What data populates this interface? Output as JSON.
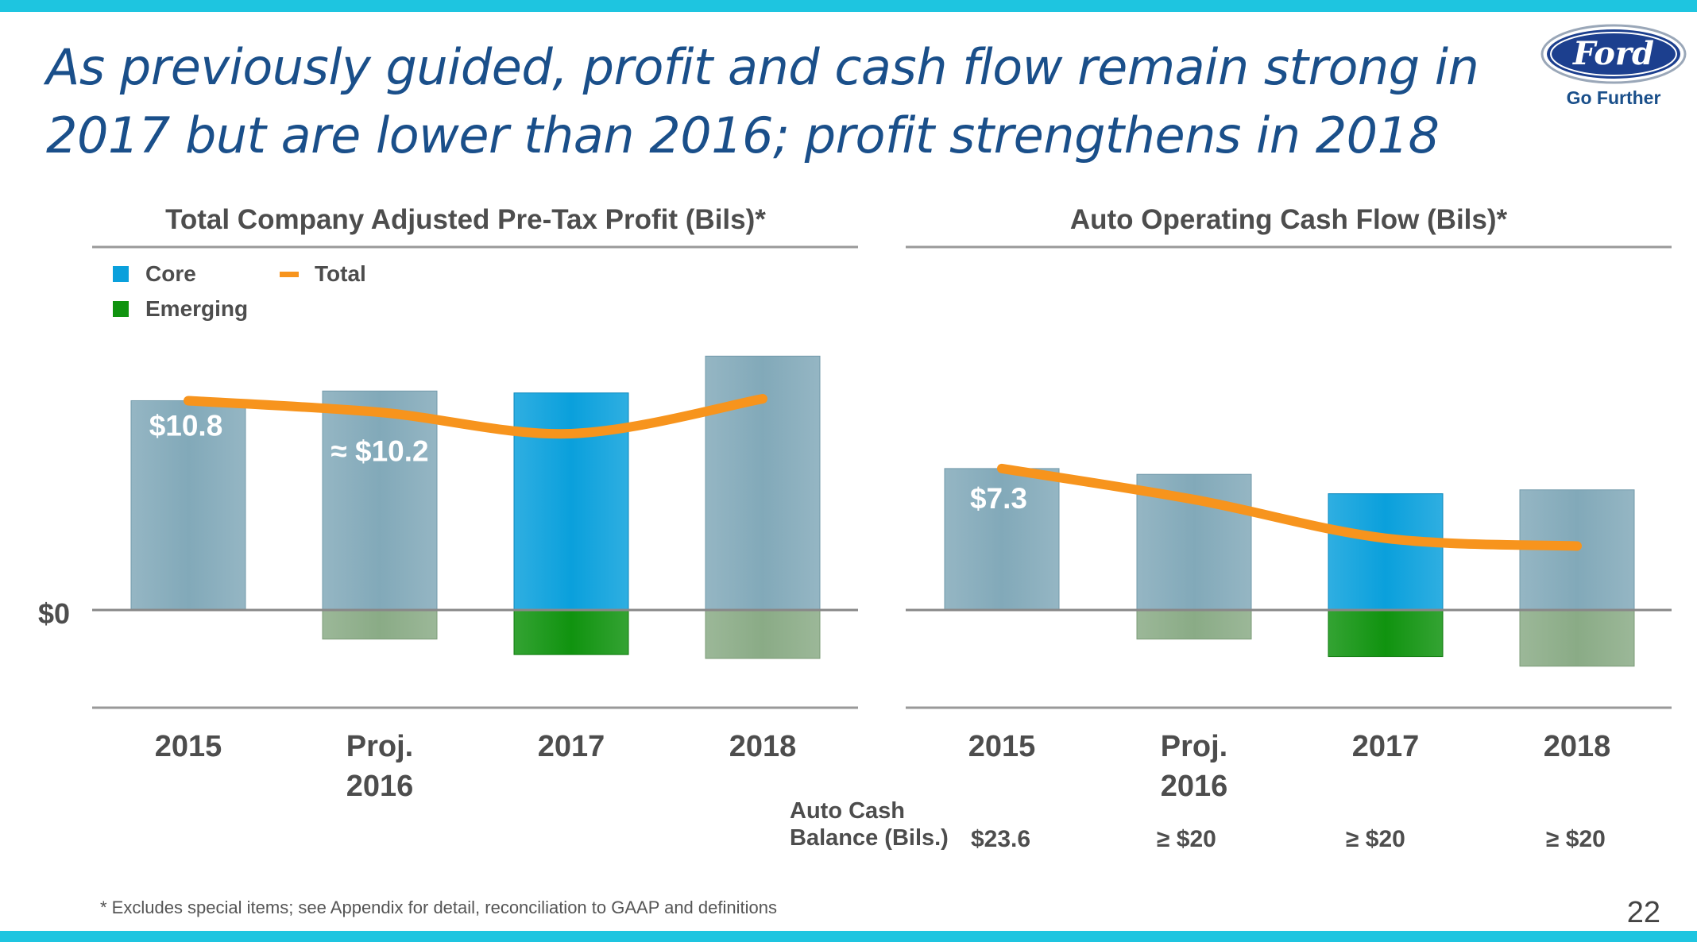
{
  "slide": {
    "title_line1": "As previously guided, profit and cash flow remain strong in",
    "title_line2": "2017 but are lower than 2016; profit strengthens in 2018",
    "brand": "Ford",
    "tagline": "Go Further",
    "footnote": "*  Excludes special items; see Appendix for detail, reconciliation to GAAP and definitions",
    "page_number": "22",
    "zero_label": "$0"
  },
  "cash_balance": {
    "label_line1": "Auto Cash",
    "label_line2": "Balance (Bils.)",
    "values": [
      "$23.6",
      "≥ $20",
      "≥ $20",
      "≥ $20"
    ]
  },
  "colors": {
    "accent_bar": "#1ec5e0",
    "title": "#1a4f8a",
    "core_gray": "#82a9b9",
    "core_blue": "#0aa0dc",
    "emerging_gray": "#8aab86",
    "emerging_green": "#10930f",
    "total_line": "#f7941d",
    "axis_text": "#4d4d4d"
  },
  "chart_data": [
    {
      "type": "bar",
      "title": "Total Company Adjusted Pre-Tax Profit (Bils)*",
      "categories": [
        "2015",
        "Proj. 2016",
        "2017",
        "2018"
      ],
      "legend": [
        "Core",
        "Emerging",
        "Total"
      ],
      "series": [
        {
          "name": "Core",
          "values": [
            10.8,
            11.3,
            11.2,
            13.1
          ]
        },
        {
          "name": "Emerging",
          "values": [
            0,
            -1.5,
            -2.3,
            -2.5
          ]
        },
        {
          "name": "Total",
          "values": [
            10.8,
            10.2,
            9.1,
            10.9
          ]
        }
      ],
      "data_labels": [
        "$10.8",
        "≈ $10.2",
        "",
        ""
      ],
      "ylim": [
        -5,
        13.5
      ],
      "highlight_index": 2
    },
    {
      "type": "bar",
      "title": "Auto Operating Cash Flow (Bils)*",
      "categories": [
        "2015",
        "Proj. 2016",
        "2017",
        "2018"
      ],
      "series": [
        {
          "name": "Core",
          "values": [
            7.3,
            7.0,
            6.0,
            6.2
          ]
        },
        {
          "name": "Emerging",
          "values": [
            0,
            -1.5,
            -2.4,
            -2.9
          ]
        },
        {
          "name": "Total",
          "values": [
            7.3,
            5.7,
            3.7,
            3.3
          ]
        }
      ],
      "data_labels": [
        "$7.3",
        "",
        "",
        ""
      ],
      "ylim": [
        -5,
        13.5
      ],
      "highlight_index": 2
    }
  ]
}
